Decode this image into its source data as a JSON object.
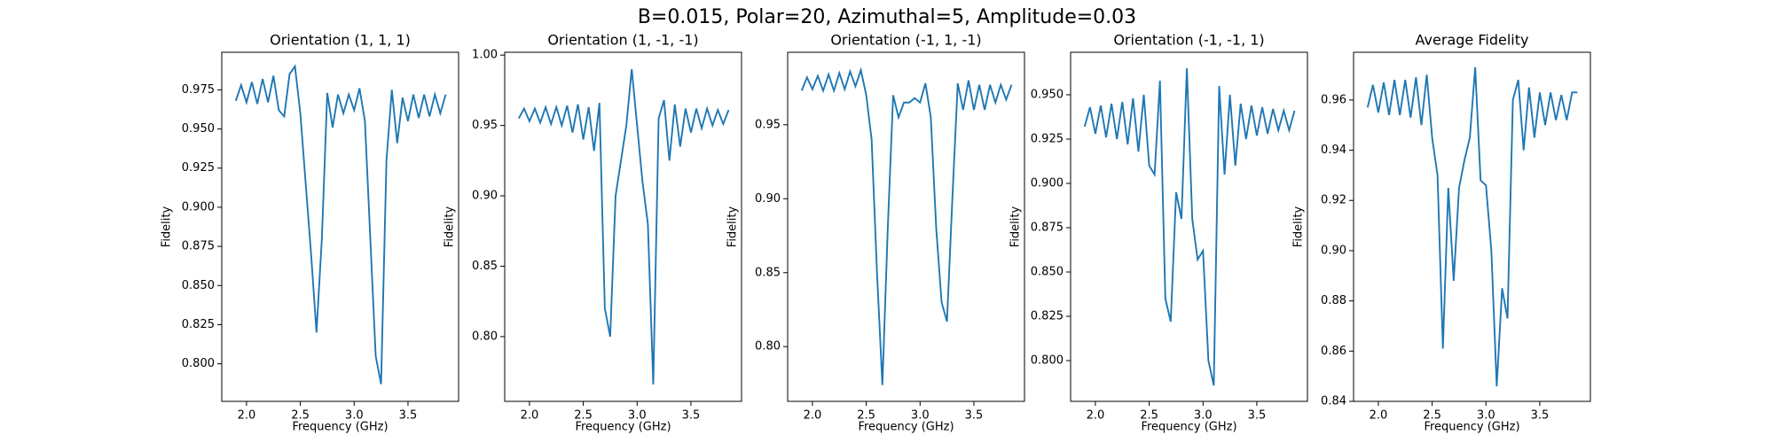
{
  "suptitle": "B=0.015, Polar=20, Azimuthal=5, Amplitude=0.03",
  "chart_data": [
    {
      "type": "line",
      "title": "Orientation (1, 1, 1)",
      "xlabel": "Frequency (GHz)",
      "ylabel": "Fidelity",
      "x": [
        1.9,
        1.95,
        2.0,
        2.05,
        2.1,
        2.15,
        2.2,
        2.25,
        2.3,
        2.35,
        2.4,
        2.45,
        2.5,
        2.55,
        2.6,
        2.65,
        2.7,
        2.75,
        2.8,
        2.85,
        2.9,
        2.95,
        3.0,
        3.05,
        3.1,
        3.15,
        3.2,
        3.25,
        3.3,
        3.35,
        3.4,
        3.45,
        3.5,
        3.55,
        3.6,
        3.65,
        3.7,
        3.75,
        3.8,
        3.85
      ],
      "series": [
        {
          "color": "#1f77b4",
          "values": [
            0.968,
            0.978,
            0.967,
            0.98,
            0.966,
            0.982,
            0.967,
            0.984,
            0.962,
            0.958,
            0.985,
            0.99,
            0.96,
            0.915,
            0.87,
            0.82,
            0.88,
            0.973,
            0.951,
            0.972,
            0.96,
            0.972,
            0.962,
            0.976,
            0.955,
            0.88,
            0.805,
            0.787,
            0.93,
            0.975,
            0.941,
            0.97,
            0.955,
            0.972,
            0.957,
            0.972,
            0.958,
            0.972,
            0.96,
            0.972
          ]
        }
      ],
      "xlim": [
        1.77,
        3.97
      ],
      "xticks": [
        {
          "value": 2.0,
          "label": "2.0"
        },
        2.5,
        {
          "value": 3.0,
          "label": "3.0"
        },
        3.5
      ],
      "ylim": [
        0.776,
        0.999
      ],
      "yticks": [
        {
          "value": 0.8,
          "label": "0.800"
        },
        0.825,
        {
          "value": 0.85,
          "label": "0.850"
        },
        0.875,
        {
          "value": 0.9,
          "label": "0.900"
        },
        0.925,
        {
          "value": 0.95,
          "label": "0.950"
        },
        0.975
      ]
    },
    {
      "type": "line",
      "title": "Orientation (1, -1, -1)",
      "xlabel": "Frequency (GHz)",
      "ylabel": "Fidelity",
      "x": [
        1.9,
        1.95,
        2.0,
        2.05,
        2.1,
        2.15,
        2.2,
        2.25,
        2.3,
        2.35,
        2.4,
        2.45,
        2.5,
        2.55,
        2.6,
        2.65,
        2.7,
        2.75,
        2.8,
        2.85,
        2.9,
        2.95,
        3.0,
        3.05,
        3.1,
        3.15,
        3.2,
        3.25,
        3.3,
        3.35,
        3.4,
        3.45,
        3.5,
        3.55,
        3.6,
        3.65,
        3.7,
        3.75,
        3.8,
        3.85
      ],
      "series": [
        {
          "color": "#1f77b4",
          "values": [
            0.955,
            0.962,
            0.953,
            0.962,
            0.952,
            0.963,
            0.951,
            0.963,
            0.95,
            0.964,
            0.945,
            0.965,
            0.94,
            0.963,
            0.932,
            0.966,
            0.82,
            0.8,
            0.9,
            0.925,
            0.95,
            0.99,
            0.95,
            0.91,
            0.88,
            0.766,
            0.955,
            0.968,
            0.925,
            0.965,
            0.935,
            0.962,
            0.945,
            0.962,
            0.948,
            0.962,
            0.95,
            0.961,
            0.951,
            0.961
          ]
        }
      ],
      "xlim": [
        1.77,
        3.97
      ],
      "xticks": [
        {
          "value": 2.0,
          "label": "2.0"
        },
        2.5,
        {
          "value": 3.0,
          "label": "3.0"
        },
        3.5
      ],
      "ylim": [
        0.754,
        1.002
      ],
      "yticks": [
        {
          "value": 0.8,
          "label": "0.80"
        },
        0.85,
        {
          "value": 0.9,
          "label": "0.90"
        },
        0.95,
        {
          "value": 1.0,
          "label": "1.00"
        }
      ]
    },
    {
      "type": "line",
      "title": "Orientation (-1, 1, -1)",
      "xlabel": "Frequency (GHz)",
      "ylabel": "Fidelity",
      "x": [
        1.9,
        1.95,
        2.0,
        2.05,
        2.1,
        2.15,
        2.2,
        2.25,
        2.3,
        2.35,
        2.4,
        2.45,
        2.5,
        2.55,
        2.6,
        2.65,
        2.7,
        2.75,
        2.8,
        2.85,
        2.9,
        2.95,
        3.0,
        3.05,
        3.1,
        3.15,
        3.2,
        3.25,
        3.3,
        3.35,
        3.4,
        3.45,
        3.5,
        3.55,
        3.6,
        3.65,
        3.7,
        3.75,
        3.8,
        3.85
      ],
      "series": [
        {
          "color": "#1f77b4",
          "values": [
            0.973,
            0.982,
            0.974,
            0.983,
            0.973,
            0.984,
            0.973,
            0.985,
            0.974,
            0.986,
            0.976,
            0.987,
            0.97,
            0.94,
            0.85,
            0.774,
            0.88,
            0.97,
            0.955,
            0.965,
            0.965,
            0.968,
            0.965,
            0.978,
            0.955,
            0.88,
            0.83,
            0.817,
            0.9,
            0.978,
            0.96,
            0.98,
            0.96,
            0.977,
            0.96,
            0.977,
            0.965,
            0.977,
            0.967,
            0.977
          ]
        }
      ],
      "xlim": [
        1.77,
        3.97
      ],
      "xticks": [
        {
          "value": 2.0,
          "label": "2.0"
        },
        2.5,
        {
          "value": 3.0,
          "label": "3.0"
        },
        3.5
      ],
      "ylim": [
        0.763,
        0.999
      ],
      "yticks": [
        {
          "value": 0.8,
          "label": "0.80"
        },
        0.85,
        {
          "value": 0.9,
          "label": "0.90"
        },
        0.95
      ]
    },
    {
      "type": "line",
      "title": "Orientation (-1, -1, 1)",
      "xlabel": "Frequency (GHz)",
      "ylabel": "Fidelity",
      "x": [
        1.9,
        1.95,
        2.0,
        2.05,
        2.1,
        2.15,
        2.2,
        2.25,
        2.3,
        2.35,
        2.4,
        2.45,
        2.5,
        2.55,
        2.6,
        2.65,
        2.7,
        2.75,
        2.8,
        2.85,
        2.9,
        2.95,
        3.0,
        3.05,
        3.1,
        3.15,
        3.2,
        3.25,
        3.3,
        3.35,
        3.4,
        3.45,
        3.5,
        3.55,
        3.6,
        3.65,
        3.7,
        3.75,
        3.8,
        3.85
      ],
      "series": [
        {
          "color": "#1f77b4",
          "values": [
            0.932,
            0.943,
            0.928,
            0.944,
            0.926,
            0.945,
            0.925,
            0.946,
            0.922,
            0.948,
            0.918,
            0.95,
            0.91,
            0.905,
            0.958,
            0.835,
            0.822,
            0.895,
            0.88,
            0.965,
            0.88,
            0.857,
            0.862,
            0.8,
            0.786,
            0.955,
            0.905,
            0.95,
            0.91,
            0.945,
            0.925,
            0.944,
            0.927,
            0.943,
            0.928,
            0.942,
            0.93,
            0.941,
            0.93,
            0.941
          ]
        }
      ],
      "xlim": [
        1.77,
        3.97
      ],
      "xticks": [
        {
          "value": 2.0,
          "label": "2.0"
        },
        2.5,
        {
          "value": 3.0,
          "label": "3.0"
        },
        3.5
      ],
      "ylim": [
        0.777,
        0.974
      ],
      "yticks": [
        {
          "value": 0.8,
          "label": "0.800"
        },
        0.825,
        {
          "value": 0.85,
          "label": "0.850"
        },
        0.875,
        {
          "value": 0.9,
          "label": "0.900"
        },
        0.925,
        {
          "value": 0.95,
          "label": "0.950"
        }
      ]
    },
    {
      "type": "line",
      "title": "Average Fidelity",
      "xlabel": "Frequency (GHz)",
      "ylabel": "Fidelity",
      "x": [
        1.9,
        1.95,
        2.0,
        2.05,
        2.1,
        2.15,
        2.2,
        2.25,
        2.3,
        2.35,
        2.4,
        2.45,
        2.5,
        2.55,
        2.6,
        2.65,
        2.7,
        2.75,
        2.8,
        2.85,
        2.9,
        2.95,
        3.0,
        3.05,
        3.1,
        3.15,
        3.2,
        3.25,
        3.3,
        3.35,
        3.4,
        3.45,
        3.5,
        3.55,
        3.6,
        3.65,
        3.7,
        3.75,
        3.8,
        3.85
      ],
      "series": [
        {
          "color": "#1f77b4",
          "values": [
            0.957,
            0.966,
            0.955,
            0.967,
            0.954,
            0.968,
            0.954,
            0.968,
            0.953,
            0.969,
            0.95,
            0.97,
            0.945,
            0.93,
            0.861,
            0.925,
            0.888,
            0.925,
            0.936,
            0.945,
            0.973,
            0.928,
            0.926,
            0.9,
            0.846,
            0.885,
            0.873,
            0.96,
            0.968,
            0.94,
            0.965,
            0.945,
            0.963,
            0.95,
            0.963,
            0.952,
            0.962,
            0.952,
            0.963,
            0.963
          ]
        }
      ],
      "xlim": [
        1.77,
        3.97
      ],
      "xticks": [
        {
          "value": 2.0,
          "label": "2.0"
        },
        2.5,
        {
          "value": 3.0,
          "label": "3.0"
        },
        3.5
      ],
      "ylim": [
        0.84,
        0.979
      ],
      "yticks": [
        0.84,
        0.86,
        0.88,
        {
          "value": 0.9,
          "label": "0.90"
        },
        0.92,
        0.94,
        0.96
      ]
    }
  ]
}
